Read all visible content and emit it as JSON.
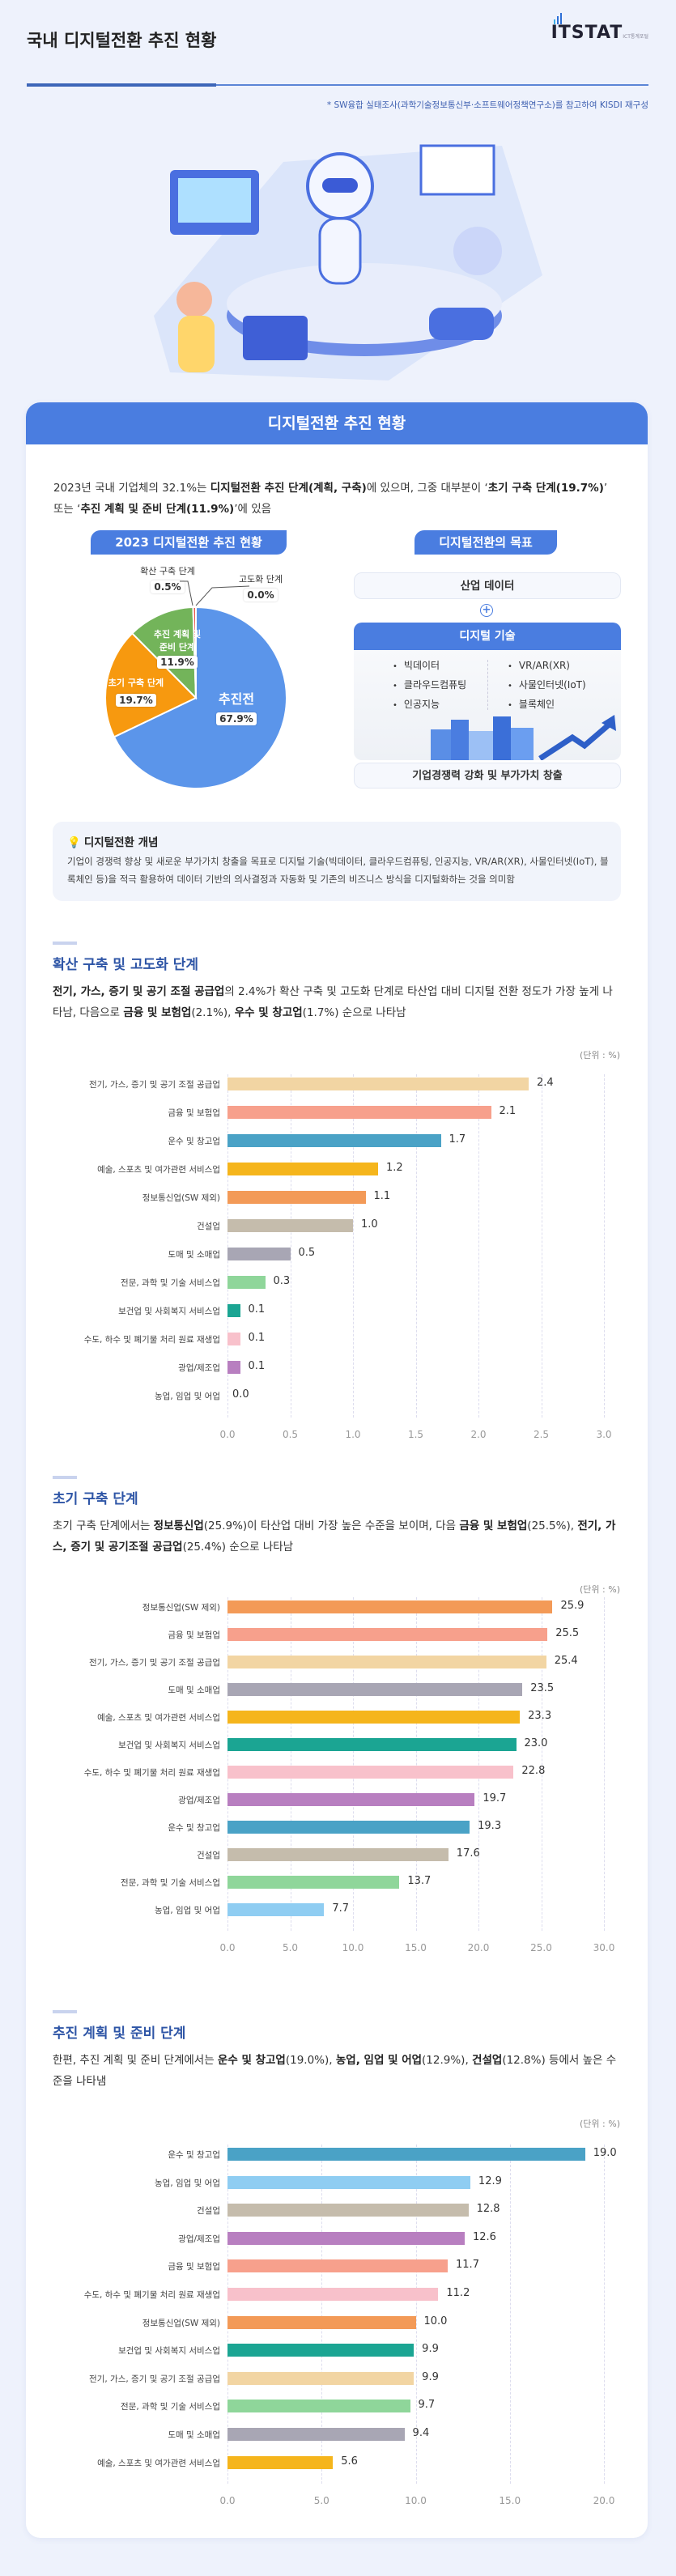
{
  "header": {
    "title": "국내 디지털전환 추진 현황",
    "logo": "ITSTAT",
    "logo_sub": "ICT통계포털",
    "source": "* SW융합 실태조사(과학기술정보통신부·소프트웨어정책연구소)를 참고하여 KISDI 재구성"
  },
  "card": {
    "title": "디지털전환 추진 현황",
    "intro": [
      {
        "t": "2023년 국내 기업체의 32.1%는 ",
        "b": false
      },
      {
        "t": "디지털전환 추진 단계(계획, 구축)",
        "b": true
      },
      {
        "t": "에 있으며, 그중 대부분이 ‘",
        "b": false
      },
      {
        "t": "초기 구축 단계(19.7%)",
        "b": true
      },
      {
        "t": "’ 또는 ‘",
        "b": false
      },
      {
        "t": "추진 계획 및 준비 단계(11.9%)",
        "b": true
      },
      {
        "t": "’에 있음",
        "b": false
      }
    ],
    "pie_heading": "2023 디지털전환 추진 현황",
    "goal_heading": "디지털전환의 목표",
    "goal": {
      "data": "산업 데이터",
      "plus": "+",
      "tech_title": "디지털 기술",
      "tech_left": [
        "빅데이터",
        "클라우드컴퓨팅",
        "인공지능"
      ],
      "tech_right": [
        "VR/AR(XR)",
        "사물인터넷(IoT)",
        "블록체인"
      ],
      "result": "기업경쟁력 강화 및 부가가치 창출"
    },
    "concept": {
      "title": "디지털전환 개념",
      "icon": "lightbulb-icon",
      "text": "기업이 경쟁력 향상 및 새로운 부가가치 창출을 목표로 디지털 기술(빅데이터, 클라우드컴퓨팅, 인공지능, VR/AR(XR), 사물인터넷(IoT), 블록체인 등)을 적극 활용하여 데이터 기반의 의사결정과 자동화 및 기존의 비즈니스 방식을 디지털화하는 것을 의미함"
    },
    "sections": [
      {
        "title": "확산 구축 및 고도화 단계",
        "text": [
          {
            "t": "전기, 가스, 증기 및 공기 조절 공급업",
            "b": true
          },
          {
            "t": "의 2.4%가 확산 구축 및 고도화 단계로 타산업 대비 디지털 전환 정도가 가장 높게 나타남, 다음으로 ",
            "b": false
          },
          {
            "t": "금융 및 보험업",
            "b": true
          },
          {
            "t": "(2.1%), ",
            "b": false
          },
          {
            "t": "우수 및 창고업",
            "b": true
          },
          {
            "t": "(1.7%) 순으로 나타남",
            "b": false
          }
        ]
      },
      {
        "title": "초기 구축 단계",
        "text": [
          {
            "t": "초기 구축 단계에서는 ",
            "b": false
          },
          {
            "t": "정보통신업",
            "b": true
          },
          {
            "t": "(25.9%)이 타산업 대비 가장 높은 수준을 보이며, 다음 ",
            "b": false
          },
          {
            "t": "금융 및 보험업",
            "b": true
          },
          {
            "t": "(25.5%), ",
            "b": false
          },
          {
            "t": "전기, 가스, 증기 및 공기조절 공급업",
            "b": true
          },
          {
            "t": "(25.4%) 순으로 나타남",
            "b": false
          }
        ]
      },
      {
        "title": "추진 계획 및 준비 단계",
        "text": [
          {
            "t": "한편, 추진 계획 및 준비 단계에서는 ",
            "b": false
          },
          {
            "t": "운수 및 창고업",
            "b": true
          },
          {
            "t": "(19.0%), ",
            "b": false
          },
          {
            "t": "농업, 임업 및 어업",
            "b": true
          },
          {
            "t": "(12.9%), ",
            "b": false
          },
          {
            "t": "건설업",
            "b": true
          },
          {
            "t": "(12.8%) 등에서 높은 수준을 나타냄",
            "b": false
          }
        ]
      }
    ]
  },
  "colors": {
    "전기, 가스, 증기 및 공기 조절 공급업": "#f2d5a3",
    "금융 및 보험업": "#f7a08c",
    "운수 및 창고업": "#4aa2c6",
    "예술, 스포츠 및 여가관련 서비스업": "#f5b51c",
    "정보통신업(SW 제외)": "#f39a57",
    "건설업": "#c5bcac",
    "도매 및 소매업": "#a8a6b4",
    "전문, 과학 및 기술 서비스업": "#8fd69a",
    "보건업 및 사회복지 서비스업": "#1ba593",
    "수도, 하수 및 폐기물 처리 원료 재생업": "#f8c1cb",
    "광업/제조업": "#b87fc0",
    "농업, 임업 및 어업": "#8fcdf2"
  },
  "chart_data": [
    {
      "type": "pie",
      "title": "2023 디지털전환 추진 현황",
      "slices": [
        {
          "label": "추진전",
          "value": 67.9,
          "value_label": "67.9%",
          "color": "#5b95ea"
        },
        {
          "label": "초기 구축 단계",
          "value": 19.7,
          "value_label": "19.7%",
          "color": "#f7990f"
        },
        {
          "label": "추진 계획 및 준비 단계",
          "value": 11.9,
          "value_label": "11.9%",
          "color": "#73b45a"
        },
        {
          "label": "확산 구축 단계",
          "value": 0.5,
          "value_label": "0.5%",
          "color": "#e8584f"
        },
        {
          "label": "고도화 단계",
          "value": 0.0,
          "value_label": "0.0%",
          "color": "#999999"
        }
      ]
    },
    {
      "type": "bar",
      "unit": "(단위 : %)",
      "xlim": [
        0,
        3
      ],
      "ticks": [
        "0.0",
        "0.5",
        "1.0",
        "1.5",
        "2.0",
        "2.5",
        "3.0"
      ],
      "categories": [
        "전기, 가스, 증기 및 공기 조절 공급업",
        "금융 및 보험업",
        "운수 및 창고업",
        "예술, 스포츠 및 여가관련 서비스업",
        "정보통신업(SW 제외)",
        "건설업",
        "도매 및 소매업",
        "전문, 과학 및 기술 서비스업",
        "보건업 및 사회복지 서비스업",
        "수도, 하수 및 폐기물 처리 원료 재생업",
        "광업/제조업",
        "농업, 임업 및 어업"
      ],
      "values": [
        2.4,
        2.1,
        1.7,
        1.2,
        1.1,
        1.0,
        0.5,
        0.3,
        0.1,
        0.1,
        0.1,
        0.0
      ],
      "value_labels": [
        "2.4",
        "2.1",
        "1.7",
        "1.2",
        "1.1",
        "1.0",
        "0.5",
        "0.3",
        "0.1",
        "0.1",
        "0.1",
        "0.0"
      ]
    },
    {
      "type": "bar",
      "unit": "(단위 : %)",
      "xlim": [
        0,
        30
      ],
      "ticks": [
        "0.0",
        "5.0",
        "10.0",
        "15.0",
        "20.0",
        "25.0",
        "30.0"
      ],
      "categories": [
        "정보통신업(SW 제외)",
        "금융 및 보험업",
        "전기, 가스, 증기 및 공기 조절 공급업",
        "도매 및 소매업",
        "예술, 스포츠 및 여가관련 서비스업",
        "보건업 및 사회복지 서비스업",
        "수도, 하수 및 폐기물 처리 원료 재생업",
        "광업/제조업",
        "운수 및 창고업",
        "건설업",
        "전문, 과학 및 기술 서비스업",
        "농업, 임업 및 어업"
      ],
      "values": [
        25.9,
        25.5,
        25.4,
        23.5,
        23.3,
        23.0,
        22.8,
        19.7,
        19.3,
        17.6,
        13.7,
        7.7
      ],
      "value_labels": [
        "25.9",
        "25.5",
        "25.4",
        "23.5",
        "23.3",
        "23.0",
        "22.8",
        "19.7",
        "19.3",
        "17.6",
        "13.7",
        "7.7"
      ]
    },
    {
      "type": "bar",
      "unit": "(단위 : %)",
      "xlim": [
        0,
        20
      ],
      "ticks": [
        "0.0",
        "5.0",
        "10.0",
        "15.0",
        "20.0"
      ],
      "categories": [
        "운수 및 창고업",
        "농업, 임업 및 어업",
        "건설업",
        "광업/제조업",
        "금융 및 보험업",
        "수도, 하수 및 폐기물 처리 원료 재생업",
        "정보통신업(SW 제외)",
        "보건업 및 사회복지 서비스업",
        "전기, 가스, 증기 및 공기 조절 공급업",
        "전문, 과학 및 기술 서비스업",
        "도매 및 소매업",
        "예술, 스포츠 및 여가관련 서비스업"
      ],
      "values": [
        19.0,
        12.9,
        12.8,
        12.6,
        11.7,
        11.2,
        10.0,
        9.9,
        9.9,
        9.7,
        9.4,
        5.6
      ],
      "value_labels": [
        "19.0",
        "12.9",
        "12.8",
        "12.6",
        "11.7",
        "11.2",
        "10.0",
        "9.9",
        "9.9",
        "9.7",
        "9.4",
        "5.6"
      ]
    }
  ]
}
